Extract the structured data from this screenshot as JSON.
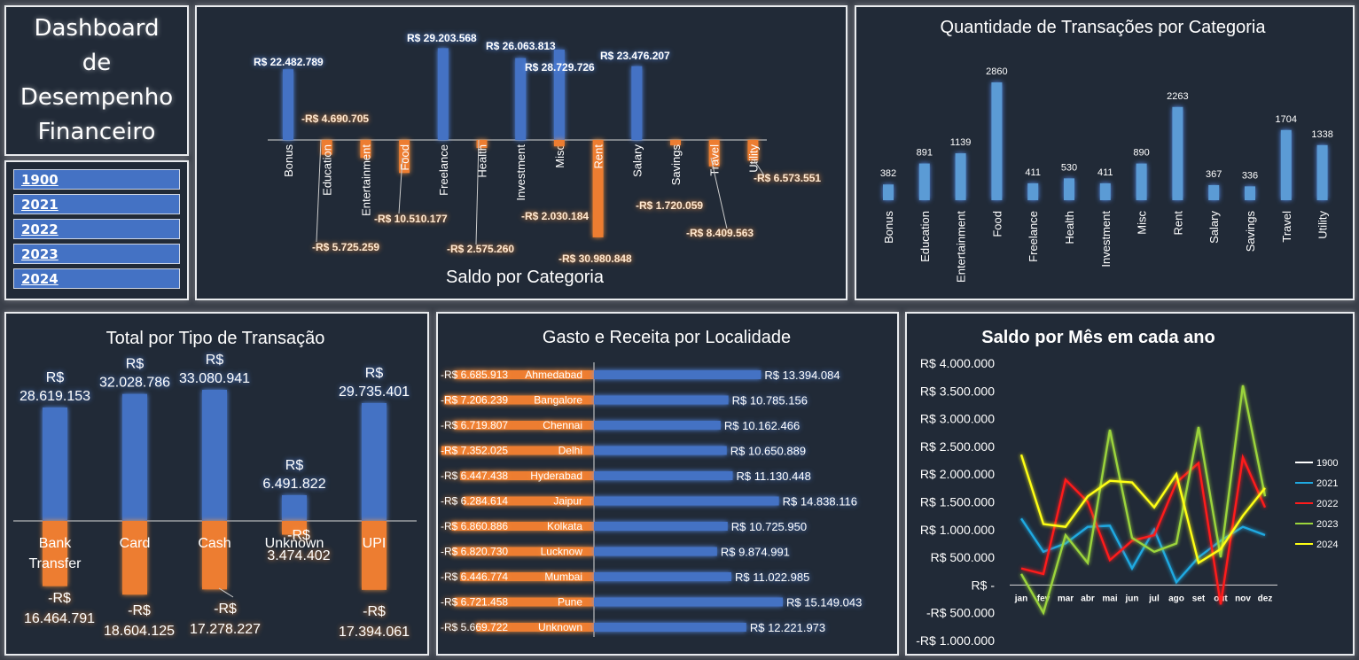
{
  "dashboard": {
    "title_lines": [
      "Dashboard",
      "de",
      "Desempenho",
      "Financeiro"
    ]
  },
  "slicer": {
    "years": [
      "1900",
      "2021",
      "2022",
      "2023",
      "2024"
    ]
  },
  "colors": {
    "blue": "#4472c4",
    "orange": "#ed7d31",
    "light_blue": "#5b9bd5",
    "panel_bg": "#212a37",
    "page_bg": "#3a3f49"
  },
  "chart_data": [
    {
      "id": "saldo_categoria",
      "type": "bar",
      "title": "Saldo por Categoria",
      "categories": [
        "Bonus",
        "Education",
        "Entertainment",
        "Food",
        "Freelance",
        "Health",
        "Investment",
        "Misc",
        "Rent",
        "Salary",
        "Savings",
        "Travel",
        "Utility"
      ],
      "series": [
        {
          "values": [
            22482789,
            -4690705,
            -5725259,
            -10510177,
            29203568,
            -2575260,
            26063813,
            28729726,
            -30980848,
            23476207,
            -1720059,
            -8409563,
            -6573551
          ]
        },
        {
          "values": [
            0,
            0,
            0,
            0,
            0,
            0,
            0,
            -2030184,
            0,
            0,
            0,
            0,
            0
          ]
        }
      ],
      "data_labels": [
        "R$ 22.482.789",
        "-R$ 4.690.705",
        "-R$ 5.725.259",
        "-R$ 10.510.177",
        "R$ 29.203.568",
        "-R$ 2.575.260",
        "R$ 26.063.813",
        "R$ 28.729.726",
        "-R$ 30.980.848",
        "R$ 23.476.207",
        "-R$ 1.720.059",
        "-R$ 8.409.563",
        "-R$ 6.573.551"
      ],
      "extra_label": "-R$ 2.030.184"
    },
    {
      "id": "qtd_transacoes",
      "type": "bar",
      "title": "Quantidade de Transações por Categoria",
      "categories": [
        "Bonus",
        "Education",
        "Entertainment",
        "Food",
        "Freelance",
        "Health",
        "Investment",
        "Misc",
        "Rent",
        "Salary",
        "Savings",
        "Travel",
        "Utility"
      ],
      "values": [
        382,
        891,
        1139,
        2860,
        411,
        530,
        411,
        890,
        2263,
        367,
        336,
        1704,
        1338
      ]
    },
    {
      "id": "tipo_transacao",
      "type": "bar",
      "title": "Total por Tipo de Transação",
      "categories": [
        "Bank Transfer",
        "Card",
        "Cash",
        "Unknown",
        "UPI"
      ],
      "series": [
        {
          "values": [
            28619153,
            32028786,
            33080941,
            6491822,
            29735401
          ]
        },
        {
          "values": [
            -16464791,
            -18604125,
            -17278227,
            -3474402,
            -17394061
          ]
        }
      ],
      "positive_labels": [
        [
          "R$",
          "28.619.153"
        ],
        [
          "R$",
          "32.028.786"
        ],
        [
          "R$",
          "33.080.941"
        ],
        [
          "R$",
          "6.491.822"
        ],
        [
          "R$",
          "29.735.401"
        ]
      ],
      "negative_labels": [
        [
          "-R$",
          "16.464.791"
        ],
        [
          "-R$",
          "18.604.125"
        ],
        [
          "-R$",
          "17.278.227"
        ],
        [
          "-R$",
          "3.474.402"
        ],
        [
          "-R$",
          "17.394.061"
        ]
      ],
      "category_labels": [
        [
          "Bank",
          "Transfer"
        ],
        [
          "Card"
        ],
        [
          "Cash"
        ],
        [
          "Unknown"
        ],
        [
          "UPI"
        ]
      ]
    },
    {
      "id": "localidade",
      "type": "bar",
      "title": "Gasto e Receita por Localidade",
      "categories": [
        "Ahmedabad",
        "Bangalore",
        "Chennai",
        "Delhi",
        "Hyderabad",
        "Jaipur",
        "Kolkata",
        "Lucknow",
        "Mumbai",
        "Pune",
        "Unknown"
      ],
      "series": [
        {
          "values": [
            -6685913,
            -7206239,
            -6719807,
            -7352025,
            -6447438,
            -6284614,
            -6860886,
            -6820730,
            -6446774,
            -6721458,
            -5669722
          ]
        },
        {
          "values": [
            13394084,
            10785156,
            10162466,
            10650889,
            11130448,
            14838116,
            10725950,
            9874991,
            11022985,
            15149043,
            12221973
          ]
        }
      ],
      "negative_labels": [
        "-R$ 6.685.913",
        "-R$ 7.206.239",
        "-R$ 6.719.807",
        "-R$ 7.352.025",
        "-R$ 6.447.438",
        "-R$ 6.284.614",
        "-R$ 6.860.886",
        "-R$ 6.820.730",
        "-R$ 6.446.774",
        "-R$ 6.721.458",
        "-R$ 5.669.722"
      ],
      "positive_labels": [
        "R$ 13.394.084",
        "R$ 10.785.156",
        "R$ 10.162.466",
        "R$ 10.650.889",
        "R$ 11.130.448",
        "R$ 14.838.116",
        "R$ 10.725.950",
        "R$ 9.874.991",
        "R$ 11.022.985",
        "R$ 15.149.043",
        "R$ 12.221.973"
      ]
    },
    {
      "id": "saldo_mes",
      "type": "line",
      "title": "Saldo por Mês em cada ano",
      "categories": [
        "jan",
        "fev",
        "mar",
        "abr",
        "mai",
        "jun",
        "jul",
        "ago",
        "set",
        "out",
        "nov",
        "dez"
      ],
      "ylim": [
        -1000000,
        4000000
      ],
      "ytick_values": [
        4000000,
        3500000,
        3000000,
        2500000,
        2000000,
        1500000,
        1000000,
        500000,
        0,
        -500000,
        -1000000
      ],
      "ytick_labels": [
        "R$ 4.000.000",
        "R$ 3.500.000",
        "R$ 3.000.000",
        "R$ 2.500.000",
        "R$ 2.000.000",
        "R$ 1.500.000",
        "R$ 1.000.000",
        "R$ 500.000",
        "R$ -",
        "-R$ 500.000",
        "-R$ 1.000.000"
      ],
      "legend_position": "right",
      "series": [
        {
          "name": "1900",
          "color": "#ffffff",
          "values": [
            null,
            null,
            null,
            null,
            null,
            null,
            null,
            null,
            null,
            null,
            null,
            null
          ]
        },
        {
          "name": "2021",
          "color": "#1fa9e1",
          "values": [
            1200000,
            600000,
            750000,
            1050000,
            1070000,
            300000,
            1000000,
            50000,
            500000,
            800000,
            1050000,
            900000
          ]
        },
        {
          "name": "2022",
          "color": "#ff1b1b",
          "values": [
            300000,
            200000,
            1900000,
            1500000,
            450000,
            800000,
            900000,
            1850000,
            2200000,
            -350000,
            2300000,
            1400000
          ]
        },
        {
          "name": "2023",
          "color": "#9bd43c",
          "values": [
            200000,
            -500000,
            900000,
            400000,
            2800000,
            850000,
            600000,
            750000,
            2850000,
            500000,
            3600000,
            1600000
          ]
        },
        {
          "name": "2024",
          "color": "#ffff14",
          "values": [
            2350000,
            1100000,
            1050000,
            1600000,
            1880000,
            1850000,
            1400000,
            2000000,
            400000,
            650000,
            1250000,
            1750000
          ]
        }
      ]
    }
  ]
}
